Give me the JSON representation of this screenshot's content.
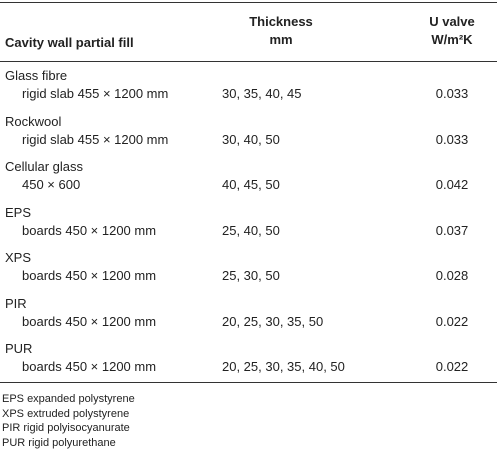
{
  "table": {
    "header": [
      "Cavity wall partial fill",
      "Thickness",
      "mm",
      "U valve",
      "W/m²K"
    ],
    "rows": [
      [
        "Glass fibre",
        "rigid slab 455 × 1200 mm",
        "30, 35, 40, 45",
        "0.033"
      ],
      [
        "Rockwool",
        "rigid slab 455 × 1200 mm",
        "30, 40, 50",
        "0.033"
      ],
      [
        "Cellular glass",
        "450 × 600",
        "40, 45, 50",
        "0.042"
      ],
      [
        "EPS",
        "boards 450 × 1200 mm",
        "25, 40, 50",
        "0.037"
      ],
      [
        "XPS",
        "boards 450 × 1200 mm",
        "25, 30, 50",
        "0.028"
      ],
      [
        "PIR",
        "boards 450 × 1200 mm",
        "20, 25, 30, 35, 50",
        "0.022"
      ],
      [
        "PUR",
        "boards 450 × 1200 mm",
        "20, 25, 30, 35, 40, 50",
        "0.022"
      ]
    ],
    "footnotes": [
      "EPS expanded polystyrene",
      "XPS extruded polystyrene",
      "PIR rigid polyisocyanurate",
      "PUR rigid polyurethane"
    ]
  }
}
